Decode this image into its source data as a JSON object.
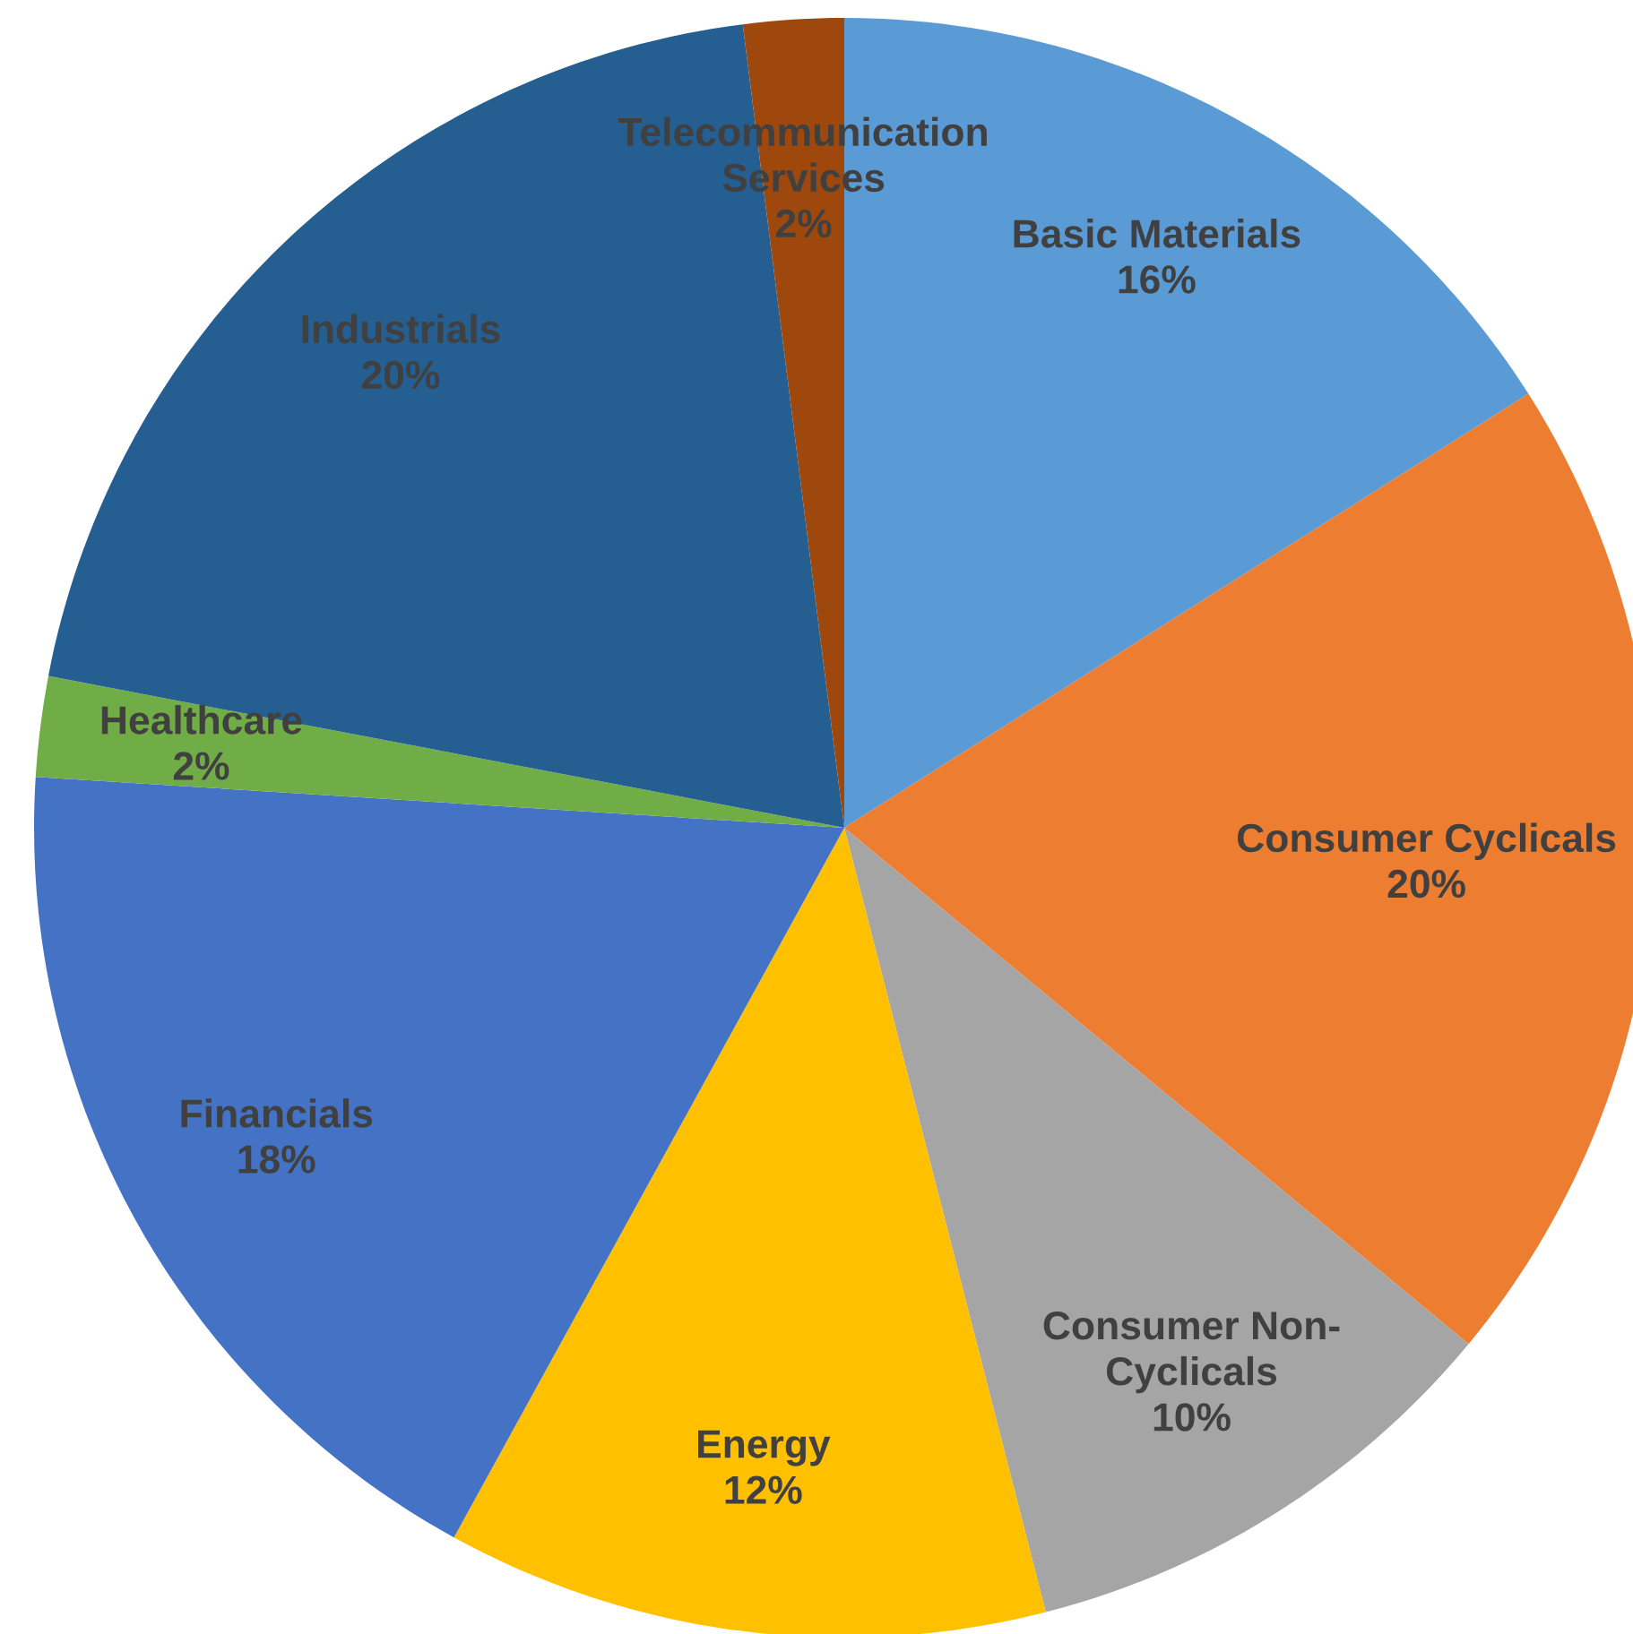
{
  "chart_data": {
    "type": "pie",
    "categories": [
      "Basic Materials",
      "Consumer Cyclicals",
      "Consumer Non-\nCyclicals",
      "Energy",
      "Financials",
      "Healthcare",
      "Industrials",
      "Telecommunication\nServices"
    ],
    "values": [
      16,
      20,
      10,
      12,
      18,
      2,
      20,
      2
    ],
    "value_labels": [
      "16%",
      "20%",
      "10%",
      "12%",
      "18%",
      "2%",
      "20%",
      "2%"
    ],
    "colors": [
      "#5b9bd5",
      "#ed7d31",
      "#a5a5a5",
      "#ffc000",
      "#4472c4",
      "#70ad47",
      "#255e91",
      "#9e480e"
    ],
    "legend": false
  }
}
